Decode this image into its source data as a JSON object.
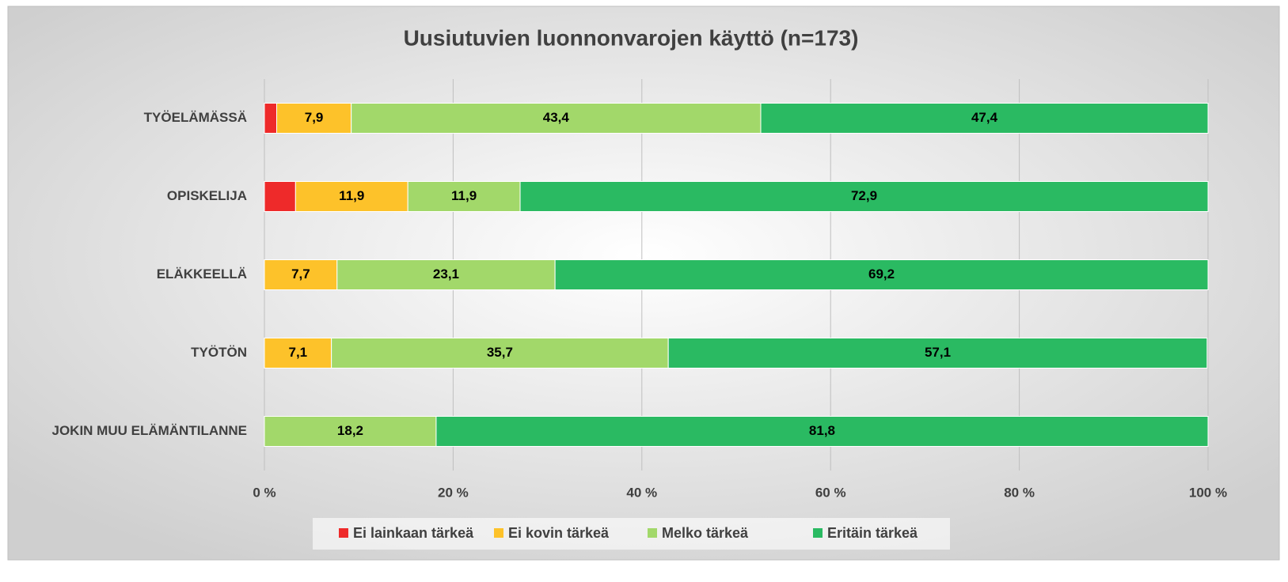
{
  "chart_data": {
    "type": "stacked_bar_horizontal",
    "title": "Uusiutuvien luonnonvarojen käyttö (n=173)",
    "categories": [
      "TYÖELÄMÄSSÄ",
      "OPISKELIJA",
      "ELÄKKEELLÄ",
      "TYÖTÖN",
      "JOKIN MUU ELÄMÄNTILANNE"
    ],
    "series": [
      {
        "name": "Ei lainkaan tärkeä",
        "color": "#ee2a2a",
        "values": [
          1.3,
          3.3,
          0,
          0,
          0
        ],
        "value_labels": [
          null,
          null,
          null,
          null,
          null
        ]
      },
      {
        "name": "Ei kovin tärkeä",
        "color": "#fdc22a",
        "values": [
          7.9,
          11.9,
          7.7,
          7.1,
          0
        ],
        "value_labels": [
          "7,9",
          "11,9",
          "7,7",
          "7,1",
          null
        ]
      },
      {
        "name": "Melko tärkeä",
        "color": "#a2d86a",
        "values": [
          43.4,
          11.9,
          23.1,
          35.7,
          18.2
        ],
        "value_labels": [
          "43,4",
          "11,9",
          "23,1",
          "35,7",
          "18,2"
        ]
      },
      {
        "name": "Eritäin tärkeä",
        "color": "#2aba62",
        "values": [
          47.4,
          72.9,
          69.2,
          57.1,
          81.8
        ],
        "value_labels": [
          "47,4",
          "72,9",
          "69,2",
          "57,1",
          "81,8"
        ]
      }
    ],
    "xlim": [
      0,
      100
    ],
    "xticks": [
      {
        "value": 0,
        "label": "0 %"
      },
      {
        "value": 20,
        "label": "20 %"
      },
      {
        "value": 40,
        "label": "40 %"
      },
      {
        "value": 60,
        "label": "60 %"
      },
      {
        "value": 80,
        "label": "80 %"
      },
      {
        "value": 100,
        "label": "100 %"
      }
    ],
    "grid": true,
    "legend": "bottom"
  }
}
